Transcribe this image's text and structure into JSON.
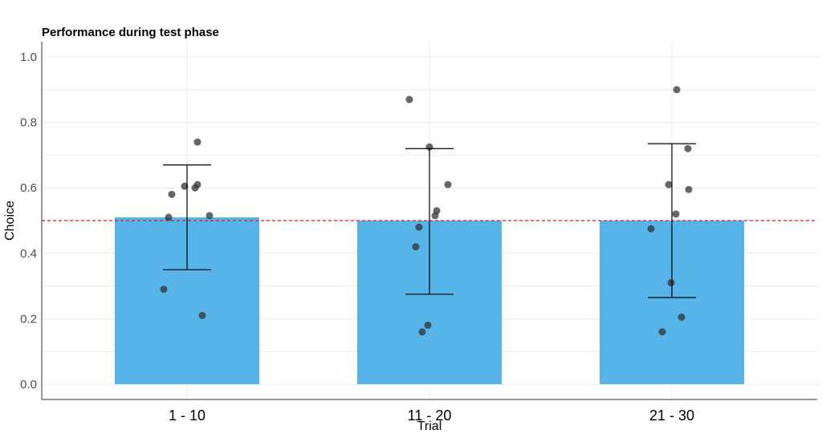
{
  "chart_data": {
    "type": "bar",
    "title": "Performance during test phase",
    "xlabel": "Trial",
    "ylabel": "Choice",
    "categories": [
      "1 - 10",
      "11 - 20",
      "21 - 30"
    ],
    "values": [
      0.51,
      0.5,
      0.5
    ],
    "error_bars": [
      {
        "lower": 0.35,
        "upper": 0.67
      },
      {
        "lower": 0.275,
        "upper": 0.72
      },
      {
        "lower": 0.265,
        "upper": 0.735
      }
    ],
    "points": [
      [
        0.74,
        0.61,
        0.605,
        0.6,
        0.58,
        0.515,
        0.51,
        0.29,
        0.21
      ],
      [
        0.87,
        0.725,
        0.61,
        0.53,
        0.515,
        0.48,
        0.42,
        0.18,
        0.16
      ],
      [
        0.9,
        0.72,
        0.61,
        0.595,
        0.52,
        0.475,
        0.31,
        0.205,
        0.16
      ]
    ],
    "reference_line": 0.5,
    "ylim": [
      0,
      1.05
    ],
    "yticks": [
      "0.0",
      "0.2",
      "0.4",
      "0.6",
      "0.8",
      "1.0"
    ],
    "grid": true,
    "colors": {
      "bar": "#56b4e9",
      "point": "#333333",
      "reference_line": "#e41a1c",
      "error_bar": "#000000",
      "grid": "#ebebeb"
    }
  }
}
